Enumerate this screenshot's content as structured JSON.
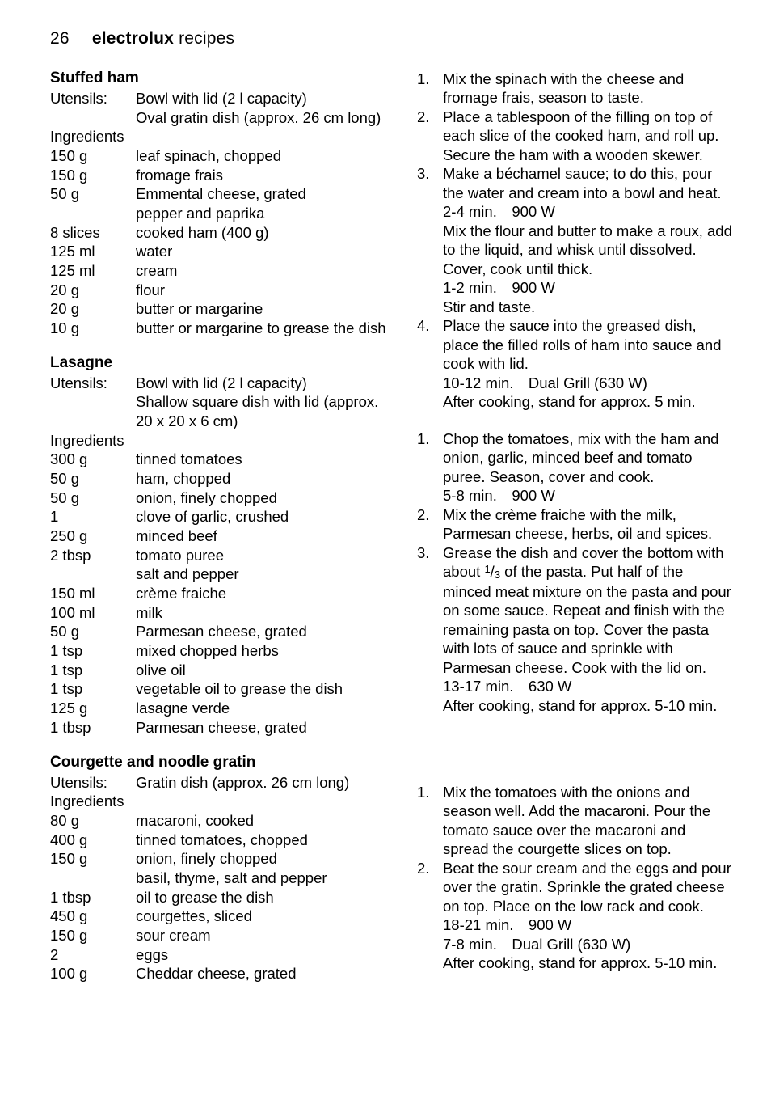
{
  "header": {
    "page_number": "26",
    "brand": "electrolux",
    "section": "recipes"
  },
  "recipe1": {
    "title": "Stuffed ham",
    "utensils_label": "Utensils:",
    "utensils": [
      "Bowl with lid (2 l capacity)",
      "Oval gratin dish (approx. 26 cm long)"
    ],
    "ingredients_label": "Ingredients",
    "ingredients": [
      {
        "q": "150 g",
        "d": "leaf spinach, chopped"
      },
      {
        "q": "150 g",
        "d": "fromage frais"
      },
      {
        "q": "50 g",
        "d": "Emmental cheese, grated"
      },
      {
        "q": "",
        "d": "pepper and paprika"
      },
      {
        "q": "8 slices",
        "d": "cooked ham (400 g)"
      },
      {
        "q": "125 ml",
        "d": "water"
      },
      {
        "q": "125 ml",
        "d": "cream"
      },
      {
        "q": "20 g",
        "d": "flour"
      },
      {
        "q": "20 g",
        "d": "butter or margarine"
      },
      {
        "q": "10 g",
        "d": "butter or margarine to grease the dish"
      }
    ],
    "steps": [
      [
        "Mix the spinach with the cheese and fromage frais, season to taste."
      ],
      [
        "Place a tablespoon of the filling on top of each slice of the cooked ham, and roll up. Secure the ham with a wooden skewer."
      ],
      [
        "Make a béchamel sauce; to do this, pour the water and cream into a bowl and heat.",
        "2-4 min. 900 W",
        "Mix the flour and butter to make a roux, add to the liquid, and whisk until dissolved. Cover, cook until thick.",
        "1-2 min. 900 W",
        "Stir and taste."
      ],
      [
        "Place the sauce into the greased dish, place the filled rolls of ham into sauce and cook with lid.",
        "10-12 min. Dual Grill (630 W)",
        "After cooking, stand for approx. 5 min."
      ]
    ]
  },
  "recipe2": {
    "title": "Lasagne",
    "utensils_label": "Utensils:",
    "utensils": [
      "Bowl with lid (2 l capacity)",
      "Shallow square dish with lid (approx. 20 x 20 x 6 cm)"
    ],
    "ingredients_label": "Ingredients",
    "ingredients": [
      {
        "q": "300 g",
        "d": "tinned tomatoes"
      },
      {
        "q": "50 g",
        "d": "ham, chopped"
      },
      {
        "q": "50 g",
        "d": "onion, finely chopped"
      },
      {
        "q": "1",
        "d": "clove of garlic, crushed"
      },
      {
        "q": "250 g",
        "d": "minced beef"
      },
      {
        "q": "2 tbsp",
        "d": "tomato puree"
      },
      {
        "q": "",
        "d": "salt and pepper"
      },
      {
        "q": "150 ml",
        "d": "crème fraiche"
      },
      {
        "q": "100 ml",
        "d": "milk"
      },
      {
        "q": "50 g",
        "d": "Parmesan cheese, grated"
      },
      {
        "q": "1 tsp",
        "d": "mixed chopped herbs"
      },
      {
        "q": "1 tsp",
        "d": "olive oil"
      },
      {
        "q": "1 tsp",
        "d": "vegetable oil to grease the dish"
      },
      {
        "q": "125 g",
        "d": "lasagne verde"
      },
      {
        "q": "1 tbsp",
        "d": "Parmesan cheese, grated"
      }
    ],
    "steps": [
      [
        "Chop the tomatoes, mix with the ham and onion, garlic, minced beef and tomato puree. Season, cover and cook.",
        "5-8 min. 900 W"
      ],
      [
        "Mix the crème fraiche with the milk, Parmesan cheese, herbs, oil and spices."
      ]
    ],
    "step3_prefix": "Grease the dish and cover the bottom with about ",
    "step3_frac_num": "1",
    "step3_frac_den": "3",
    "step3_suffix": " of the pasta. Put half of the minced meat mixture on the pasta and pour on some sauce. Repeat and finish with the remaining pasta on top. Cover the pasta with lots of sauce and sprinkle with Parmesan cheese. Cook with the lid on.",
    "step3_time": "13-17 min. 630 W",
    "step3_after": "After cooking, stand for approx. 5-10 min."
  },
  "recipe3": {
    "title": "Courgette and noodle gratin",
    "utensils_label": "Utensils:",
    "utensils_val": "Gratin dish (approx. 26 cm long)",
    "ingredients_label": "Ingredients",
    "ingredients": [
      {
        "q": "80 g",
        "d": "macaroni, cooked"
      },
      {
        "q": "400 g",
        "d": "tinned tomatoes, chopped"
      },
      {
        "q": "150 g",
        "d": "onion, finely chopped"
      },
      {
        "q": "",
        "d": "basil, thyme, salt and pepper"
      },
      {
        "q": "1 tbsp",
        "d": "oil to grease the dish"
      },
      {
        "q": "450 g",
        "d": "courgettes, sliced"
      },
      {
        "q": "150 g",
        "d": "sour cream"
      },
      {
        "q": "2",
        "d": "eggs"
      },
      {
        "q": "100 g",
        "d": "Cheddar cheese, grated"
      }
    ],
    "steps": [
      [
        "Mix the tomatoes with the onions and season well. Add the macaroni. Pour the tomato sauce over the macaroni and spread the courgette slices on top."
      ],
      [
        "Beat the sour cream and the eggs and pour over the gratin. Sprinkle the grated cheese on top. Place on the low rack and cook.",
        "18-21 min. 900 W",
        "7-8 min. Dual Grill (630 W)",
        "After cooking, stand for approx. 5-10 min."
      ]
    ]
  }
}
